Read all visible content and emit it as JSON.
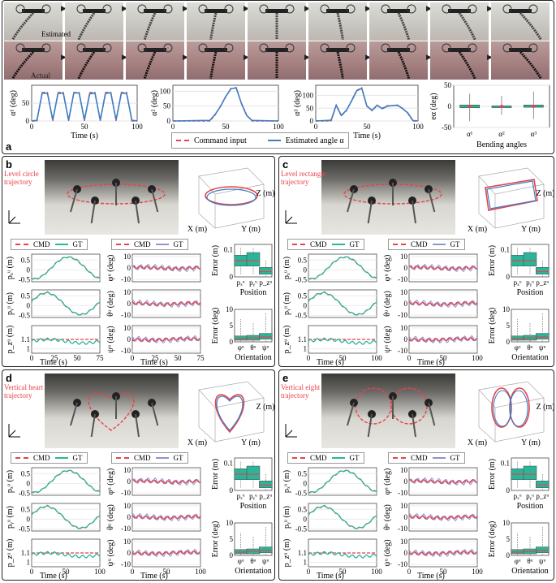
{
  "colors": {
    "cmd": "#e8424b",
    "gt": "#2ab59a",
    "est": "#3b7fc4",
    "ori": "#8d95d0"
  },
  "panel_a": {
    "letter": "a",
    "estimated_label": "Estimated",
    "actual_label": "Actual",
    "frames": 9,
    "ylabels": [
      "α¹ (deg)",
      "α² (deg)",
      "α³ (deg)"
    ],
    "xlabel": "Time (s)",
    "legend": {
      "cmd": "Command input",
      "est": "Estimated angle α"
    },
    "err": {
      "ylabel": "eα (deg)",
      "xlabel": "Bending angles",
      "cats": [
        "α¹",
        "α²",
        "α³"
      ]
    }
  },
  "panel_b": {
    "letter": "b",
    "photo_label": "Level circle trajectory",
    "cmd": "CMD",
    "gt": "GT",
    "xlabel": "Time (s)",
    "pos_title": "Position",
    "ori_title": "Orientation",
    "err_m": "Error (m)",
    "err_deg": "Error (deg)"
  },
  "panel_c": {
    "letter": "c",
    "photo_label": "Level rectangle trajectory",
    "cmd": "CMD",
    "gt": "GT",
    "xlabel": "Time (s)",
    "pos_title": "Position",
    "ori_title": "Orientation",
    "err_m": "Error (m)",
    "err_deg": "Error (deg)"
  },
  "panel_d": {
    "letter": "d",
    "photo_label": "Vertical heart trajectory",
    "cmd": "CMD",
    "gt": "GT",
    "xlabel": "Time (s)",
    "pos_title": "Position",
    "ori_title": "Orientation",
    "err_m": "Error (m)",
    "err_deg": "Error (deg)"
  },
  "panel_e": {
    "letter": "e",
    "photo_label": "Vertical eight trajectory",
    "cmd": "CMD",
    "gt": "GT",
    "xlabel": "Time (s)",
    "pos_title": "Position",
    "ori_title": "Orientation",
    "err_m": "Error (m)",
    "err_deg": "Error (deg)"
  },
  "chart_data": [
    {
      "type": "line",
      "id": "a1",
      "ylabel": "α¹ (deg)",
      "xlabel": "Time (s)",
      "xlim": [
        0,
        100
      ],
      "ylim": [
        0,
        100
      ],
      "xticks": [
        0,
        50,
        100
      ],
      "yticks": [
        0,
        50
      ],
      "series": [
        {
          "name": "Command input",
          "x": [
            0,
            5,
            10,
            15,
            20,
            25,
            30,
            35,
            40,
            45,
            50,
            55,
            60,
            65,
            70,
            75,
            80,
            85,
            90,
            95,
            100
          ],
          "y": [
            0,
            0,
            80,
            80,
            0,
            80,
            80,
            0,
            80,
            80,
            0,
            80,
            80,
            0,
            80,
            80,
            0,
            80,
            80,
            0,
            0
          ]
        },
        {
          "name": "Estimated angle α",
          "x": [
            0,
            5,
            10,
            15,
            20,
            25,
            30,
            35,
            40,
            45,
            50,
            55,
            60,
            65,
            70,
            75,
            80,
            85,
            90,
            95,
            100
          ],
          "y": [
            0,
            2,
            78,
            77,
            3,
            77,
            78,
            2,
            79,
            78,
            3,
            76,
            78,
            2,
            77,
            79,
            3,
            78,
            77,
            2,
            0
          ]
        }
      ]
    },
    {
      "type": "line",
      "id": "a2",
      "ylabel": "α² (deg)",
      "xlabel": "Time (s)",
      "xlim": [
        0,
        100
      ],
      "ylim": [
        0,
        120
      ],
      "xticks": [
        0,
        50,
        100
      ],
      "yticks": [
        0,
        50,
        100
      ],
      "series": [
        {
          "name": "Command input",
          "x": [
            0,
            35,
            40,
            45,
            50,
            55,
            60,
            65,
            70,
            75,
            100
          ],
          "y": [
            0,
            0,
            20,
            50,
            80,
            110,
            110,
            60,
            20,
            0,
            0
          ]
        },
        {
          "name": "Estimated angle α",
          "x": [
            0,
            35,
            40,
            45,
            50,
            55,
            60,
            65,
            70,
            75,
            100
          ],
          "y": [
            0,
            2,
            22,
            48,
            82,
            108,
            112,
            58,
            18,
            2,
            0
          ]
        }
      ]
    },
    {
      "type": "line",
      "id": "a3",
      "ylabel": "α³ (deg)",
      "xlabel": "Time (s)",
      "xlim": [
        0,
        100
      ],
      "ylim": [
        0,
        140
      ],
      "xticks": [
        0,
        50,
        100
      ],
      "yticks": [
        0,
        50,
        100
      ],
      "series": [
        {
          "name": "Command input",
          "x": [
            0,
            15,
            20,
            25,
            30,
            35,
            40,
            45,
            50,
            55,
            60,
            65,
            70,
            80,
            85,
            90,
            95,
            100
          ],
          "y": [
            0,
            0,
            60,
            20,
            40,
            80,
            120,
            130,
            60,
            40,
            60,
            50,
            60,
            60,
            50,
            30,
            0,
            0
          ]
        },
        {
          "name": "Estimated angle α",
          "x": [
            0,
            15,
            20,
            25,
            30,
            35,
            40,
            45,
            50,
            55,
            60,
            65,
            70,
            80,
            85,
            90,
            95,
            100
          ],
          "y": [
            0,
            3,
            62,
            22,
            42,
            78,
            118,
            128,
            58,
            42,
            62,
            48,
            58,
            62,
            48,
            32,
            2,
            0
          ]
        }
      ]
    },
    {
      "type": "box",
      "id": "aerr",
      "ylabel": "eα (deg)",
      "xlabel": "Bending angles",
      "categories": [
        "α¹",
        "α²",
        "α³"
      ],
      "ylim": [
        -50,
        50
      ],
      "yticks": [
        -50,
        0,
        50
      ],
      "boxes": [
        {
          "min": -35,
          "q1": -3,
          "median": 0,
          "q3": 3,
          "max": 30
        },
        {
          "min": -20,
          "q1": -1,
          "median": 0,
          "q3": 1,
          "max": 25
        },
        {
          "min": -30,
          "q1": -2,
          "median": 0,
          "q3": 3,
          "max": 35
        }
      ]
    }
  ]
}
